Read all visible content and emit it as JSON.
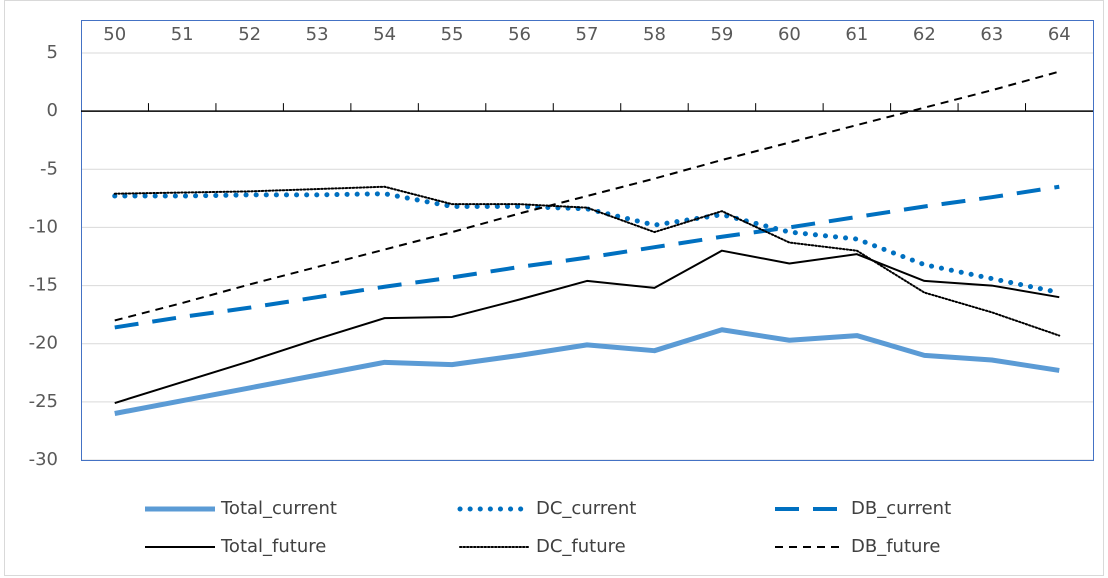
{
  "chart_data": {
    "type": "line",
    "categories": [
      "50",
      "51",
      "52",
      "53",
      "54",
      "55",
      "56",
      "57",
      "58",
      "59",
      "60",
      "61",
      "62",
      "63",
      "64"
    ],
    "ylim": [
      -30,
      5
    ],
    "yticks": [
      -30,
      -25,
      -20,
      -15,
      -10,
      -5,
      0,
      5
    ],
    "grid": true,
    "series": [
      {
        "name": "Total_current",
        "color": "#5b9bd5",
        "style": "solid",
        "width": 5,
        "values": [
          -26.0,
          -24.9,
          -23.8,
          -22.7,
          -21.6,
          -21.8,
          -21.0,
          -20.1,
          -20.6,
          -18.8,
          -19.7,
          -19.3,
          -21.0,
          -21.4,
          -22.3
        ]
      },
      {
        "name": "DC_current",
        "color": "#0070c0",
        "style": "dotted",
        "width": 5,
        "values": [
          -7.3,
          -7.3,
          -7.2,
          -7.2,
          -7.1,
          -8.2,
          -8.2,
          -8.4,
          -9.8,
          -8.9,
          -10.4,
          -11.0,
          -13.2,
          -14.4,
          -15.6
        ]
      },
      {
        "name": "DB_current",
        "color": "#0070c0",
        "style": "dashed",
        "width": 4,
        "values": [
          -18.6,
          -17.7,
          -16.9,
          -16.0,
          -15.1,
          -14.3,
          -13.4,
          -12.6,
          -11.7,
          -10.8,
          -10.0,
          -9.1,
          -8.2,
          -7.4,
          -6.5
        ]
      },
      {
        "name": "Total_future",
        "color": "#000000",
        "style": "solid",
        "width": 2,
        "values": [
          -25.1,
          -23.3,
          -21.5,
          -19.6,
          -17.8,
          -17.7,
          -16.2,
          -14.6,
          -15.2,
          -12.0,
          -13.1,
          -12.3,
          -14.6,
          -15.0,
          -16.0
        ]
      },
      {
        "name": "DC_future",
        "color": "#000000",
        "style": "dotted",
        "width": 2,
        "values": [
          -7.1,
          -7.0,
          -6.9,
          -6.7,
          -6.5,
          -8.0,
          -8.0,
          -8.3,
          -10.4,
          -8.6,
          -11.3,
          -12.0,
          -15.6,
          -17.3,
          -19.3
        ]
      },
      {
        "name": "DB_future",
        "color": "#000000",
        "style": "dashed",
        "width": 2,
        "values": [
          -18.0,
          -16.5,
          -14.9,
          -13.4,
          -11.9,
          -10.4,
          -8.8,
          -7.3,
          -5.8,
          -4.2,
          -2.7,
          -1.2,
          0.3,
          1.8,
          3.4
        ]
      }
    ]
  }
}
